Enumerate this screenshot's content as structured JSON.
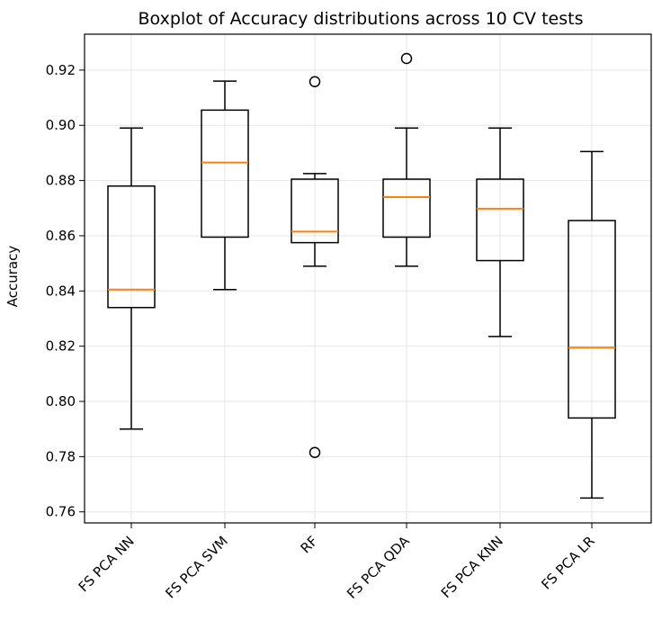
{
  "chart_data": {
    "type": "boxplot",
    "title": "Boxplot of Accuracy distributions across 10 CV tests",
    "xlabel": "",
    "ylabel": "Accuracy",
    "ylim": [
      0.756,
      0.933
    ],
    "yticks": [
      0.76,
      0.78,
      0.8,
      0.82,
      0.84,
      0.86,
      0.88,
      0.9,
      0.92
    ],
    "ytick_labels": [
      "0.76",
      "0.78",
      "0.80",
      "0.82",
      "0.84",
      "0.86",
      "0.88",
      "0.90",
      "0.92"
    ],
    "grid": true,
    "colors": {
      "box": "#000000",
      "median": "#ff7f0e",
      "grid": "#e6e6e6",
      "flier": "#000000"
    },
    "categories": [
      "FS PCA NN",
      "FS PCA SVM",
      "RF",
      "FS PCA QDA",
      "FS PCA KNN",
      "FS PCA LR"
    ],
    "boxes": [
      {
        "label": "FS PCA NN",
        "whisker_low": 0.79,
        "q1": 0.834,
        "median": 0.8405,
        "q3": 0.878,
        "whisker_high": 0.899,
        "fliers": []
      },
      {
        "label": "FS PCA SVM",
        "whisker_low": 0.8405,
        "q1": 0.8595,
        "median": 0.8865,
        "q3": 0.9055,
        "whisker_high": 0.916,
        "fliers": []
      },
      {
        "label": "RF",
        "whisker_low": 0.849,
        "q1": 0.8575,
        "median": 0.8615,
        "q3": 0.8805,
        "whisker_high": 0.8825,
        "fliers": [
          0.9158,
          0.7815
        ]
      },
      {
        "label": "FS PCA QDA",
        "whisker_low": 0.849,
        "q1": 0.8595,
        "median": 0.874,
        "q3": 0.8805,
        "whisker_high": 0.899,
        "fliers": [
          0.9242
        ]
      },
      {
        "label": "FS PCA KNN",
        "whisker_low": 0.8235,
        "q1": 0.851,
        "median": 0.8698,
        "q3": 0.8805,
        "whisker_high": 0.899,
        "fliers": []
      },
      {
        "label": "FS PCA LR",
        "whisker_low": 0.765,
        "q1": 0.794,
        "median": 0.8195,
        "q3": 0.8655,
        "whisker_high": 0.8905,
        "fliers": []
      }
    ]
  }
}
